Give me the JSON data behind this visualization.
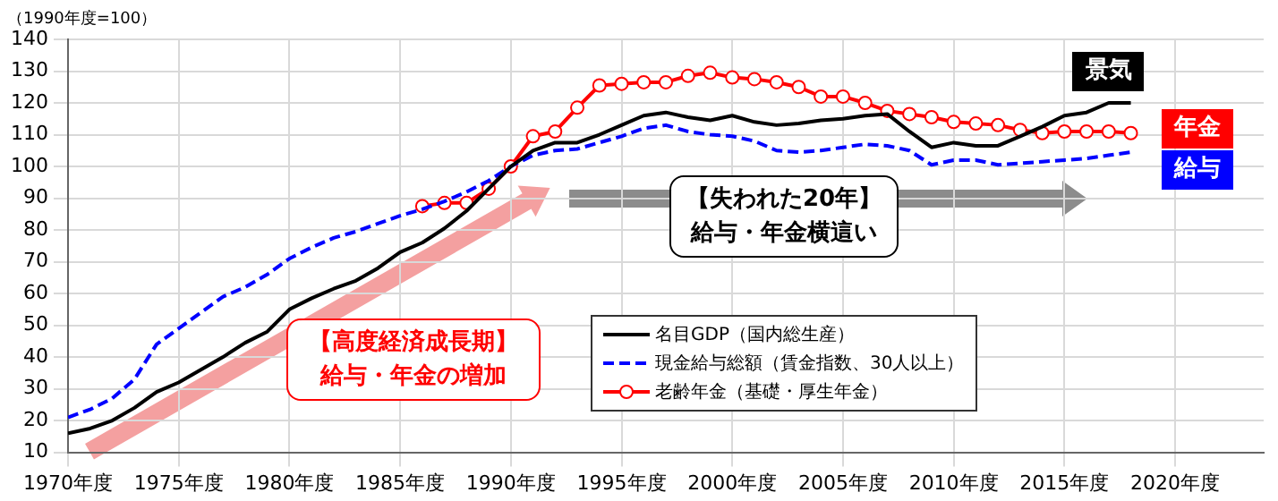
{
  "chart_data": {
    "type": "line",
    "ylabel": "（1990年度=100）",
    "x": [
      1970,
      1971,
      1972,
      1973,
      1974,
      1975,
      1976,
      1977,
      1978,
      1979,
      1980,
      1981,
      1982,
      1983,
      1984,
      1985,
      1986,
      1987,
      1988,
      1989,
      1990,
      1991,
      1992,
      1993,
      1994,
      1995,
      1996,
      1997,
      1998,
      1999,
      2000,
      2001,
      2002,
      2003,
      2004,
      2005,
      2006,
      2007,
      2008,
      2009,
      2010,
      2011,
      2012,
      2013,
      2014,
      2015,
      2016,
      2017,
      2018
    ],
    "series": [
      {
        "name": "名目GDP（国内総生産）",
        "color": "#000000",
        "marker": "none",
        "line_style": "solid",
        "values": [
          16,
          17.5,
          20,
          24,
          29,
          32,
          36,
          40,
          44.5,
          48,
          55,
          58.5,
          61.5,
          64,
          68,
          73,
          76,
          80.5,
          86,
          93,
          100,
          105,
          107.5,
          107.5,
          110,
          113,
          116,
          117,
          115.5,
          114.5,
          116,
          114,
          113,
          113.5,
          114.5,
          115,
          116,
          116.5,
          111,
          106,
          107.5,
          106.5,
          106.5,
          109.5,
          112.5,
          116,
          117,
          120,
          120
        ]
      },
      {
        "name": "現金給与総額（賃金指数、30人以上）",
        "color": "#0000ff",
        "marker": "none",
        "line_style": "dashed",
        "values": [
          21,
          23.5,
          27,
          33,
          44,
          49,
          54,
          59,
          62,
          66,
          71,
          74.5,
          77.5,
          79.5,
          82,
          84.5,
          86.5,
          89,
          92,
          95.5,
          100,
          103.5,
          105,
          105.5,
          107.5,
          109.5,
          112,
          113,
          111,
          110,
          109.5,
          108,
          105,
          104.5,
          105,
          106,
          107,
          106.5,
          105,
          100.5,
          102,
          102,
          100.5,
          101,
          101.5,
          102,
          102.5,
          103.5,
          104.5
        ]
      },
      {
        "name": "老齢年金（基礎・厚生年金）",
        "color": "#ff0000",
        "marker": "circle",
        "line_style": "solid",
        "values": [
          null,
          null,
          null,
          null,
          null,
          null,
          null,
          null,
          null,
          null,
          null,
          null,
          null,
          null,
          null,
          null,
          87.5,
          88.5,
          88.5,
          93,
          100,
          109.5,
          111,
          118.5,
          125.5,
          126,
          126.5,
          126.5,
          128.5,
          129.5,
          128,
          127.5,
          126.5,
          125,
          122,
          122,
          120,
          117.5,
          116.5,
          115.5,
          114,
          113.5,
          113,
          111.5,
          110.5,
          111,
          111,
          111,
          110.5
        ]
      }
    ],
    "xlim": [
      1970,
      2024
    ],
    "xticks": [
      {
        "value": 1970,
        "label": "1970年度"
      },
      {
        "value": 1975,
        "label": "1975年度"
      },
      {
        "value": 1980,
        "label": "1980年度"
      },
      {
        "value": 1985,
        "label": "1985年度"
      },
      {
        "value": 1990,
        "label": "1990年度"
      },
      {
        "value": 1995,
        "label": "1995年度"
      },
      {
        "value": 2000,
        "label": "2000年度"
      },
      {
        "value": 2005,
        "label": "2005年度"
      },
      {
        "value": 2010,
        "label": "2010年度"
      },
      {
        "value": 2015,
        "label": "2015年度"
      },
      {
        "value": 2020,
        "label": "2020年度"
      }
    ],
    "ylim": [
      10,
      140
    ],
    "yticks": [
      10,
      20,
      30,
      40,
      50,
      60,
      70,
      80,
      90,
      100,
      110,
      120,
      130,
      140
    ],
    "grid": true,
    "legend": "bottom",
    "annotations": [
      "景気",
      "年金",
      "給与",
      "【高度経済成長期】給与・年金の増加",
      "【失われた20年】給与・年金横這い"
    ]
  }
}
